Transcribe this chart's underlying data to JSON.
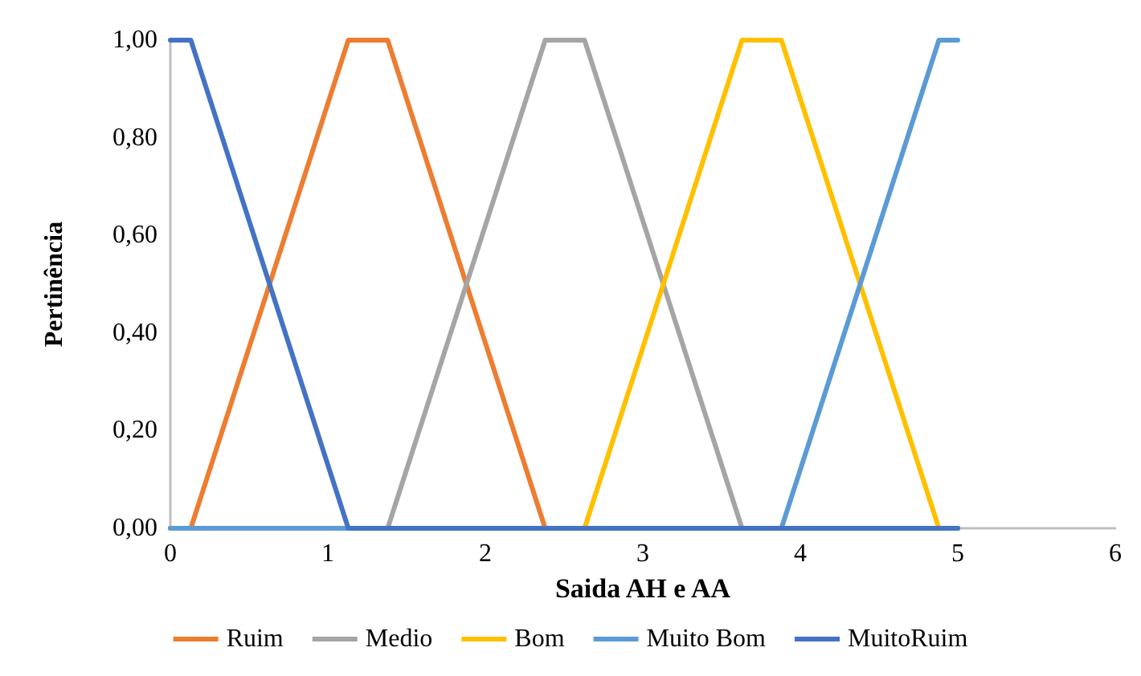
{
  "chart_data": {
    "type": "line",
    "xlabel": "Saida AH e AA",
    "ylabel": "Pertinência",
    "xlim": [
      0,
      6
    ],
    "xticks": [
      0,
      1,
      2,
      3,
      4,
      5,
      6
    ],
    "ylim": [
      0,
      1
    ],
    "yticks": [
      {
        "value": 0,
        "label": "0,00"
      },
      {
        "value": 0.2,
        "label": "0,20"
      },
      {
        "value": 0.4,
        "label": "0,40"
      },
      {
        "value": 0.6,
        "label": "0,60"
      },
      {
        "value": 0.8,
        "label": "0,80"
      },
      {
        "value": 1,
        "label": "1,00"
      }
    ],
    "grid": false,
    "legend": "bottom",
    "marker": "none",
    "line_style": "solid",
    "series": [
      {
        "name": "Ruim",
        "color": "#ed7d31",
        "x": [
          0,
          0.13,
          1.13,
          1.38,
          2.38,
          5
        ],
        "values": [
          0,
          0,
          1,
          1,
          0,
          0
        ]
      },
      {
        "name": "Medio",
        "color": "#a5a5a5",
        "x": [
          0,
          1.38,
          2.38,
          2.63,
          3.63,
          5
        ],
        "values": [
          0,
          0,
          1,
          1,
          0,
          0
        ]
      },
      {
        "name": "Bom",
        "color": "#ffc000",
        "x": [
          0,
          2.63,
          3.63,
          3.88,
          4.88,
          5
        ],
        "values": [
          0,
          0,
          1,
          1,
          0,
          0
        ]
      },
      {
        "name": "Muito Bom",
        "color": "#5b9bd5",
        "x": [
          0,
          3.88,
          4.88,
          5
        ],
        "values": [
          0,
          0,
          1,
          1
        ]
      },
      {
        "name": "MuitoRuim",
        "color": "#4472c4",
        "x": [
          0,
          0.13,
          1.13,
          5
        ],
        "values": [
          1,
          1,
          0,
          0
        ]
      }
    ]
  }
}
